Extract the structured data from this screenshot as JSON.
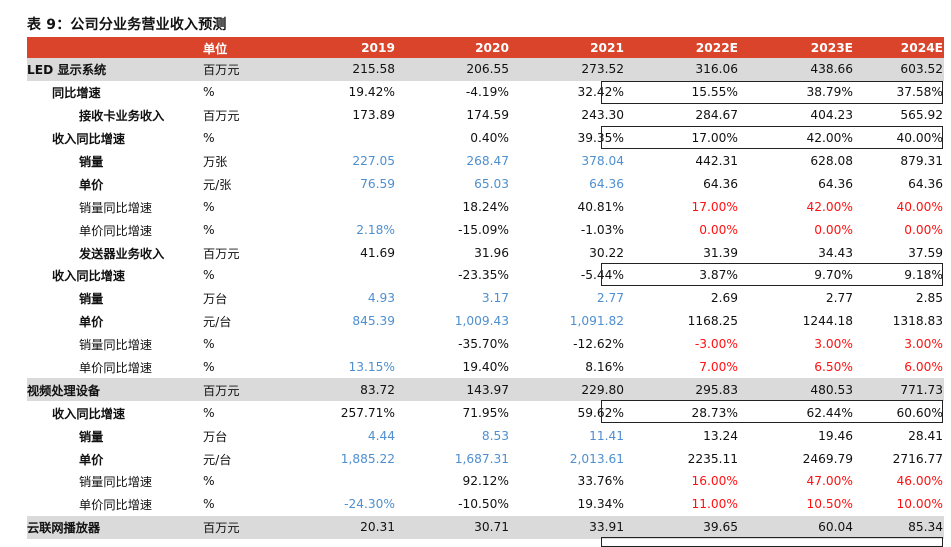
{
  "title": "表 9：公司分业务营业收入预测",
  "header": {
    "unit": "单位",
    "years": [
      "2019",
      "2020",
      "2021",
      "2022E",
      "2023E",
      "2024E"
    ]
  },
  "colors": {
    "header_bg": "#d9442b",
    "section_bg": "#dadada",
    "blue_text": "#4f8fcf",
    "red_text": "#ff1111"
  },
  "rows": [
    {
      "label": "LED 显示系统",
      "unit": "百万元",
      "values": [
        "215.58",
        "206.55",
        "273.52",
        "316.06",
        "438.66",
        "603.52"
      ]
    },
    {
      "label": "同比增速",
      "unit": "%",
      "values": [
        "19.42%",
        "-4.19%",
        "32.42%",
        "15.55%",
        "38.79%",
        "37.58%"
      ]
    },
    {
      "label": "接收卡业务收入",
      "unit": "百万元",
      "values": [
        "173.89",
        "174.59",
        "243.30",
        "284.67",
        "404.23",
        "565.92"
      ]
    },
    {
      "label": "收入同比增速",
      "unit": "%",
      "values": [
        "",
        "0.40%",
        "39.35%",
        "17.00%",
        "42.00%",
        "40.00%"
      ]
    },
    {
      "label": "销量",
      "unit": "万张",
      "values": [
        "227.05",
        "268.47",
        "378.04",
        "442.31",
        "628.08",
        "879.31"
      ]
    },
    {
      "label": "单价",
      "unit": "元/张",
      "values": [
        "76.59",
        "65.03",
        "64.36",
        "64.36",
        "64.36",
        "64.36"
      ]
    },
    {
      "label": "销量同比增速",
      "unit": "%",
      "values": [
        "",
        "18.24%",
        "40.81%",
        "17.00%",
        "42.00%",
        "40.00%"
      ]
    },
    {
      "label": "单价同比增速",
      "unit": "%",
      "values": [
        "2.18%",
        "-15.09%",
        "-1.03%",
        "0.00%",
        "0.00%",
        "0.00%"
      ]
    },
    {
      "label": "发送器业务收入",
      "unit": "百万元",
      "values": [
        "41.69",
        "31.96",
        "30.22",
        "31.39",
        "34.43",
        "37.59"
      ]
    },
    {
      "label": "收入同比增速",
      "unit": "%",
      "values": [
        "",
        "-23.35%",
        "-5.44%",
        "3.87%",
        "9.70%",
        "9.18%"
      ]
    },
    {
      "label": "销量",
      "unit": "万台",
      "values": [
        "4.93",
        "3.17",
        "2.77",
        "2.69",
        "2.77",
        "2.85"
      ]
    },
    {
      "label": "单价",
      "unit": "元/台",
      "values": [
        "845.39",
        "1,009.43",
        "1,091.82",
        "1168.25",
        "1244.18",
        "1318.83"
      ]
    },
    {
      "label": "销量同比增速",
      "unit": "%",
      "values": [
        "",
        "-35.70%",
        "-12.62%",
        "-3.00%",
        "3.00%",
        "3.00%"
      ]
    },
    {
      "label": "单价同比增速",
      "unit": "%",
      "values": [
        "13.15%",
        "19.40%",
        "8.16%",
        "7.00%",
        "6.50%",
        "6.00%"
      ]
    },
    {
      "label": "视频处理设备",
      "unit": "百万元",
      "values": [
        "83.72",
        "143.97",
        "229.80",
        "295.83",
        "480.53",
        "771.73"
      ]
    },
    {
      "label": "收入同比增速",
      "unit": "%",
      "values": [
        "257.71%",
        "71.95%",
        "59.62%",
        "28.73%",
        "62.44%",
        "60.60%"
      ]
    },
    {
      "label": "销量",
      "unit": "万台",
      "values": [
        "4.44",
        "8.53",
        "11.41",
        "13.24",
        "19.46",
        "28.41"
      ]
    },
    {
      "label": "单价",
      "unit": "元/台",
      "values": [
        "1,885.22",
        "1,687.31",
        "2,013.61",
        "2235.11",
        "2469.79",
        "2716.77"
      ]
    },
    {
      "label": "销量同比增速",
      "unit": "%",
      "values": [
        "",
        "92.12%",
        "33.76%",
        "16.00%",
        "47.00%",
        "46.00%"
      ]
    },
    {
      "label": "单价同比增速",
      "unit": "%",
      "values": [
        "-24.30%",
        "-10.50%",
        "19.34%",
        "11.00%",
        "10.50%",
        "10.00%"
      ]
    },
    {
      "label": "云联网播放器",
      "unit": "百万元",
      "values": [
        "20.31",
        "30.71",
        "33.91",
        "39.65",
        "60.04",
        "85.34"
      ]
    }
  ]
}
